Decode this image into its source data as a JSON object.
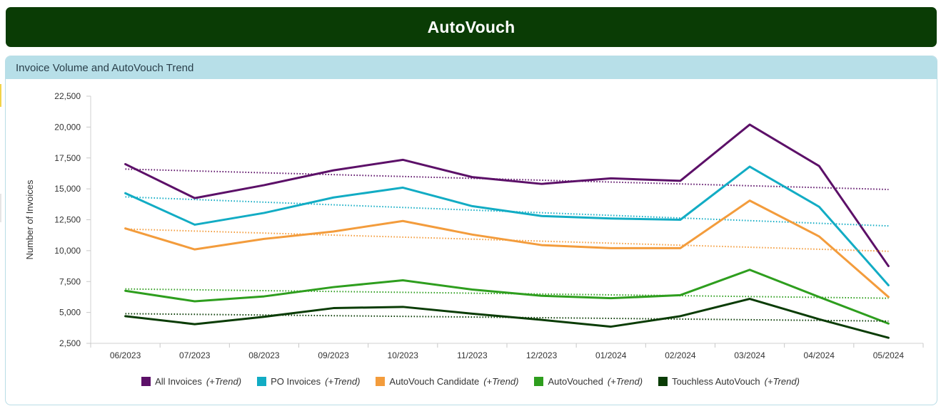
{
  "header": {
    "title": "AutoVouch"
  },
  "panel": {
    "title": "Invoice Volume and AutoVouch Trend"
  },
  "chart_data": {
    "type": "line",
    "title": "Invoice Volume and AutoVouch Trend",
    "xlabel": "",
    "ylabel": "Number of Invoices",
    "ylim": [
      2500,
      22500
    ],
    "yticks": [
      2500,
      5000,
      7500,
      10000,
      12500,
      15000,
      17500,
      20000,
      22500
    ],
    "ytick_labels": [
      "2,500",
      "5,000",
      "7,500",
      "10,000",
      "12,500",
      "15,000",
      "17,500",
      "20,000",
      "22,500"
    ],
    "categories": [
      "06/2023",
      "07/2023",
      "08/2023",
      "09/2023",
      "10/2023",
      "11/2023",
      "12/2023",
      "01/2024",
      "02/2024",
      "03/2024",
      "04/2024",
      "05/2024"
    ],
    "legend_position": "bottom",
    "grid": false,
    "series": [
      {
        "name": "All Invoices",
        "color": "#5c1068",
        "trend": [
          16600,
          14950
        ],
        "values": [
          17000,
          14250,
          15300,
          16500,
          17350,
          15950,
          15400,
          15850,
          15650,
          20200,
          16850,
          8750
        ]
      },
      {
        "name": "PO Invoices",
        "color": "#12acc4",
        "trend": [
          14350,
          12000
        ],
        "values": [
          14650,
          12100,
          13050,
          14300,
          15100,
          13600,
          12800,
          12600,
          12500,
          16800,
          13550,
          7200
        ]
      },
      {
        "name": "AutoVouch Candidate",
        "color": "#f39c3c",
        "trend": [
          11750,
          9950
        ],
        "values": [
          11800,
          10100,
          10950,
          11550,
          12400,
          11300,
          10450,
          10200,
          10200,
          14050,
          11150,
          6250
        ]
      },
      {
        "name": "AutoVouched",
        "color": "#2e9e1e",
        "trend": [
          6900,
          6150
        ],
        "values": [
          6750,
          5900,
          6300,
          7050,
          7600,
          6850,
          6350,
          6150,
          6400,
          8450,
          6250,
          4100
        ]
      },
      {
        "name": "Touchless AutoVouch",
        "color": "#0a3c05",
        "trend": [
          4900,
          4300
        ],
        "values": [
          4700,
          4050,
          4650,
          5350,
          5450,
          4900,
          4400,
          3850,
          4700,
          6100,
          4450,
          2950
        ]
      }
    ]
  },
  "legend": {
    "trend_suffix": "(+Trend)",
    "items": [
      {
        "label": "All Invoices",
        "color": "#5c1068"
      },
      {
        "label": "PO Invoices",
        "color": "#12acc4"
      },
      {
        "label": "AutoVouch Candidate",
        "color": "#f39c3c"
      },
      {
        "label": "AutoVouched",
        "color": "#2e9e1e"
      },
      {
        "label": "Touchless AutoVouch",
        "color": "#0a3c05"
      }
    ]
  }
}
